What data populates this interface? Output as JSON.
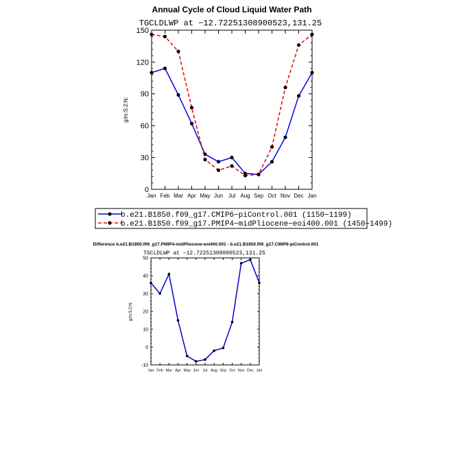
{
  "top_title": "Annual Cycle of Cloud Liquid Water Path",
  "top_subtitle": "TGCLDLWP  at  −12.72251308900523,131.25",
  "diff_title": "Difference b.e21.B1850.f09_g17.PMIP4-midPliocene-eoi400.001 - b.e21.B1850.f09_g17.CMIP6-piControl.001",
  "diff_subtitle": "TGCLDLWP  at  −12.72251308900523,131.25",
  "colors": {
    "series1": "#0000ee",
    "series2": "#ee0000",
    "marker": "#000000",
    "diff": "#0000cc"
  },
  "chart_data": [
    {
      "type": "line",
      "title": "Annual Cycle of Cloud Liquid Water Path",
      "subtitle": "TGCLDLWP  at  −12.72251308900523,131.25",
      "ylabel": "g/m:S:2:N:",
      "xlabel": "",
      "categories": [
        "Jan",
        "Feb",
        "Mar",
        "Apr",
        "May",
        "Jun",
        "Jul",
        "Aug",
        "Sep",
        "Oct",
        "Nov",
        "Dec",
        "Jan"
      ],
      "yticks": [
        0,
        30,
        60,
        90,
        120,
        150
      ],
      "ylim": [
        0,
        150
      ],
      "legend": "bottom",
      "series": [
        {
          "name": "b.e21.B1850.f09_g17.CMIP6−piControl.001  (1150−1199)",
          "style": "solid",
          "values": [
            110,
            114,
            89,
            62,
            33,
            26,
            30,
            15,
            14,
            26,
            49,
            88,
            110
          ]
        },
        {
          "name": "b.e21.B1850.f09_g17.PMIP4−midPliocene−eoi400.001  (1450−1499)",
          "style": "dashed",
          "values": [
            146,
            144,
            130,
            77,
            28,
            18,
            22,
            13,
            14,
            40,
            96,
            136,
            146
          ]
        }
      ]
    },
    {
      "type": "line",
      "title": "Difference b.e21.B1850.f09_g17.PMIP4-midPliocene-eoi400.001 - b.e21.B1850.f09_g17.CMIP6-piControl.001",
      "subtitle": "TGCLDLWP  at  −12.72251308900523,131.25",
      "ylabel": "g/m:S:2:N:",
      "xlabel": "",
      "categories": [
        "Jan",
        "Feb",
        "Mar",
        "Apr",
        "May",
        "Jun",
        "Jul",
        "Aug",
        "Sep",
        "Oct",
        "Nov",
        "Dec",
        "Jan"
      ],
      "yticks": [
        -10,
        0,
        10,
        20,
        30,
        40,
        50
      ],
      "ylim": [
        -10,
        50
      ],
      "series": [
        {
          "values": [
            36,
            30,
            41,
            15,
            -5,
            -8,
            -7,
            -2,
            -0.5,
            14,
            47,
            49,
            36
          ]
        }
      ]
    }
  ]
}
